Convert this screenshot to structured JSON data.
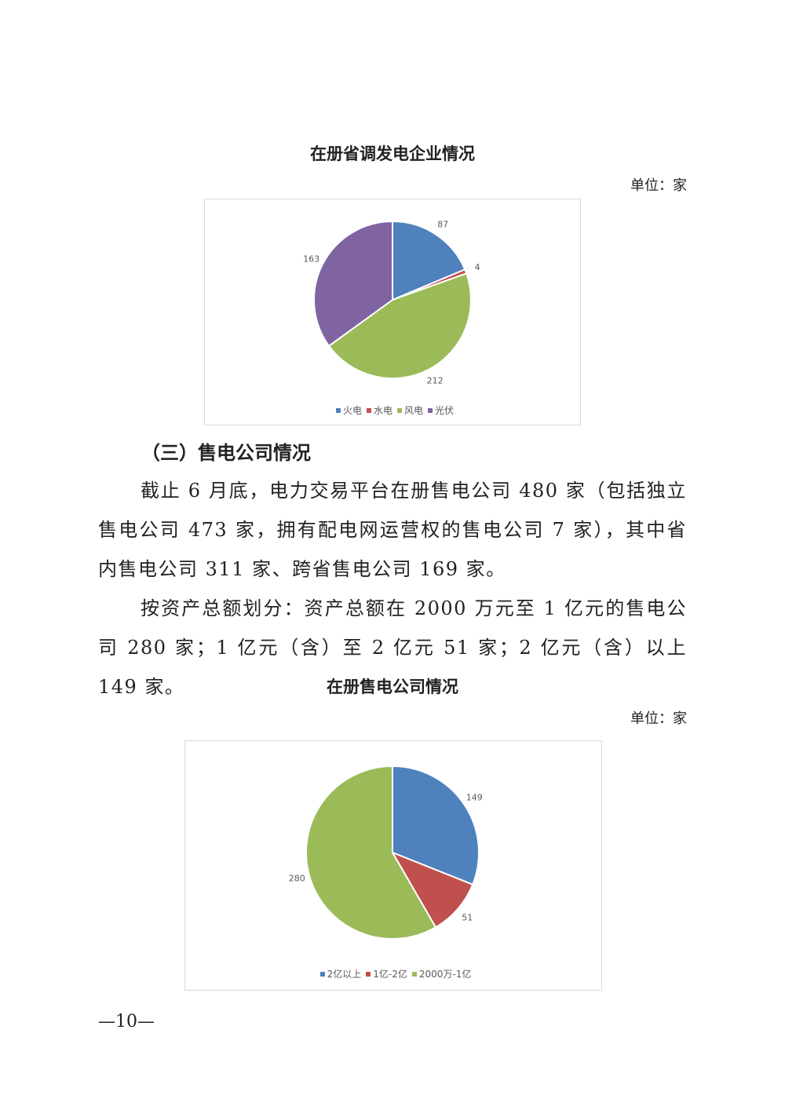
{
  "chart1": {
    "title": "在册省调发电企业情况",
    "unit": "单位：家"
  },
  "section_heading": "（三）售电公司情况",
  "paragraphs": [
    "截止 6 月底，电力交易平台在册售电公司 480 家（包括独立售电公司 473 家，拥有配电网运营权的售电公司 7 家），其中省内售电公司 311 家、跨省售电公司 169 家。",
    "按资产总额划分：资产总额在 2000 万元至 1 亿元的售电公司 280 家；1 亿元（含）至 2 亿元 51 家；2 亿元（含）以上 149 家。"
  ],
  "chart2": {
    "title": "在册售电公司情况",
    "unit": "单位：家"
  },
  "page_number": "—10—",
  "chart_data": [
    {
      "type": "pie",
      "title": "在册省调发电企业情况",
      "categories": [
        "火电",
        "水电",
        "风电",
        "光伏"
      ],
      "values": [
        87,
        4,
        212,
        163
      ],
      "colors": [
        "#4f81bd",
        "#c0504d",
        "#9bbb59",
        "#8064a2"
      ],
      "legend": "bottom"
    },
    {
      "type": "pie",
      "title": "在册售电公司情况",
      "categories": [
        "2亿以上",
        "1亿-2亿",
        "2000万-1亿"
      ],
      "values": [
        149,
        51,
        280
      ],
      "colors": [
        "#4f81bd",
        "#c0504d",
        "#9bbb59"
      ],
      "legend": "bottom"
    }
  ]
}
